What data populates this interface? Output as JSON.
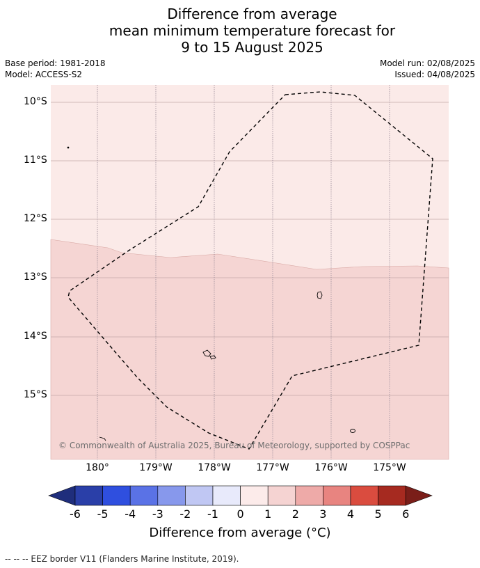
{
  "title": {
    "line1": "Difference from average",
    "line2": "mean minimum temperature forecast for",
    "line3": "9 to 15 August 2025"
  },
  "meta": {
    "base_period": "Base period: 1981-2018",
    "model": "Model: ACCESS-S2",
    "model_run": "Model run: 02/08/2025",
    "issued": "Issued: 04/08/2025"
  },
  "map": {
    "lat_labels": [
      "10°S",
      "11°S",
      "12°S",
      "13°S",
      "14°S",
      "15°S"
    ],
    "lon_labels": [
      "180°",
      "179°W",
      "178°W",
      "177°W",
      "176°W",
      "175°W"
    ],
    "copyright": "© Commonwealth of Australia 2025, Bureau of Meteorology, supported by COSPPac",
    "region_colors": {
      "upper_band": "#fbeae8",
      "lower_band": "#f5d5d3"
    }
  },
  "colorbar": {
    "ticks": [
      "-6",
      "-5",
      "-4",
      "-3",
      "-2",
      "-1",
      "0",
      "1",
      "2",
      "3",
      "4",
      "5",
      "6"
    ],
    "colors": [
      "#1f2e7c",
      "#2a3fa8",
      "#2f4fdf",
      "#5a72e6",
      "#8798ec",
      "#c0c7f3",
      "#e8eafb",
      "#fcebea",
      "#f5d3d2",
      "#eeaaa8",
      "#e88480",
      "#da4c3f",
      "#a62a20",
      "#7a1e19"
    ],
    "label": "Difference from average (°C)"
  },
  "footnote": "-- -- -- EEZ border V11 (Flanders Marine Institute, 2019)."
}
